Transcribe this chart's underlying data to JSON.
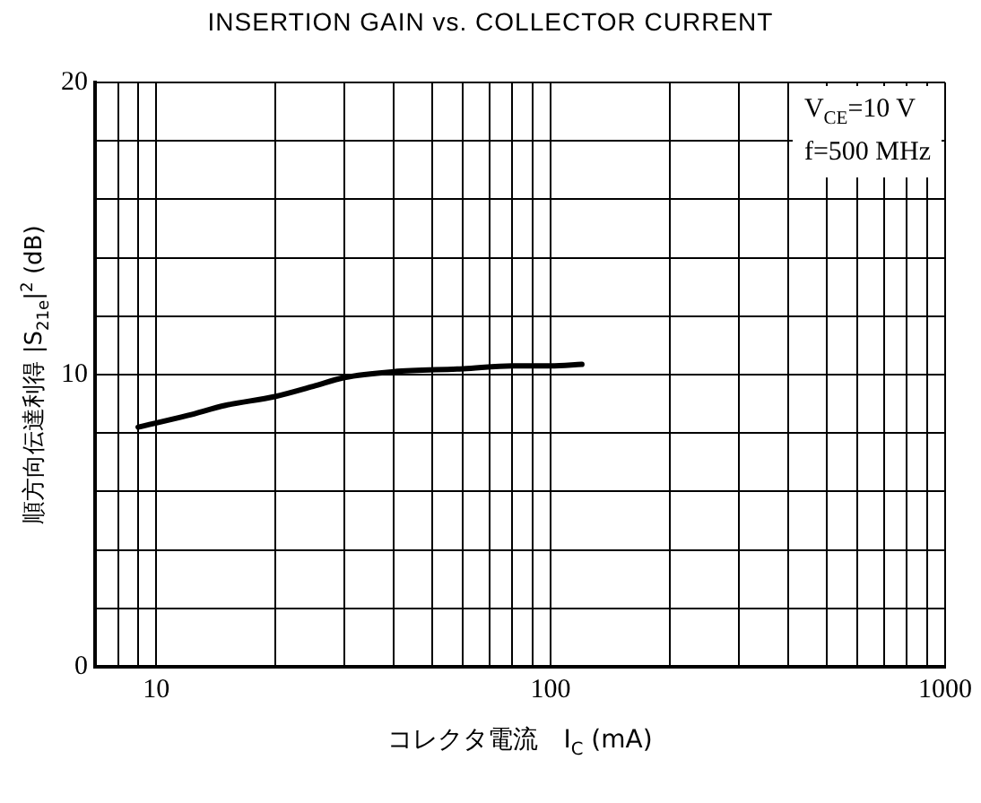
{
  "chart_data": {
    "type": "line",
    "title": "INSERTION GAIN vs. COLLECTOR CURRENT",
    "xlabel": "コレクタ電流　I$_{C}$ (mA)",
    "ylabel": "順方向伝達利得 |S$_{21e}$|$^{2}$ (dB)",
    "annotations": [
      "V$_{CE}$=10 V",
      "f=500 MHz"
    ],
    "series": [
      {
        "color": "#000000",
        "x": [
          9,
          12,
          15,
          20,
          25,
          30,
          40,
          60,
          80,
          100,
          120
        ],
        "values": [
          8.2,
          8.6,
          8.95,
          9.25,
          9.6,
          9.9,
          10.1,
          10.2,
          10.3,
          10.3,
          10.35
        ]
      }
    ],
    "log": "x",
    "xlim": [
      7,
      1000
    ],
    "xticks": [
      {
        "value": 8,
        "label": null
      },
      {
        "value": 9,
        "label": null
      },
      10,
      {
        "value": 20,
        "label": null
      },
      {
        "value": 30,
        "label": null
      },
      {
        "value": 40,
        "label": null
      },
      {
        "value": 50,
        "label": null
      },
      {
        "value": 60,
        "label": null
      },
      {
        "value": 70,
        "label": null
      },
      {
        "value": 80,
        "label": null
      },
      {
        "value": 90,
        "label": null
      },
      100,
      {
        "value": 200,
        "label": null
      },
      {
        "value": 300,
        "label": null
      },
      {
        "value": 400,
        "label": null
      },
      {
        "value": 500,
        "label": null
      },
      {
        "value": 600,
        "label": null
      },
      {
        "value": 700,
        "label": null
      },
      {
        "value": 800,
        "label": null
      },
      {
        "value": 900,
        "label": null
      },
      1000
    ],
    "ylim": [
      0,
      20
    ],
    "yticks": [
      0,
      {
        "value": 2,
        "label": null
      },
      {
        "value": 4,
        "label": null
      },
      {
        "value": 6,
        "label": null
      },
      {
        "value": 8,
        "label": null
      },
      10,
      {
        "value": 12,
        "label": null
      },
      {
        "value": 14,
        "label": null
      },
      {
        "value": 16,
        "label": null
      },
      {
        "value": 18,
        "label": null
      },
      20
    ],
    "grid": true,
    "marker": "none",
    "line_style": "solid",
    "legend": false
  }
}
